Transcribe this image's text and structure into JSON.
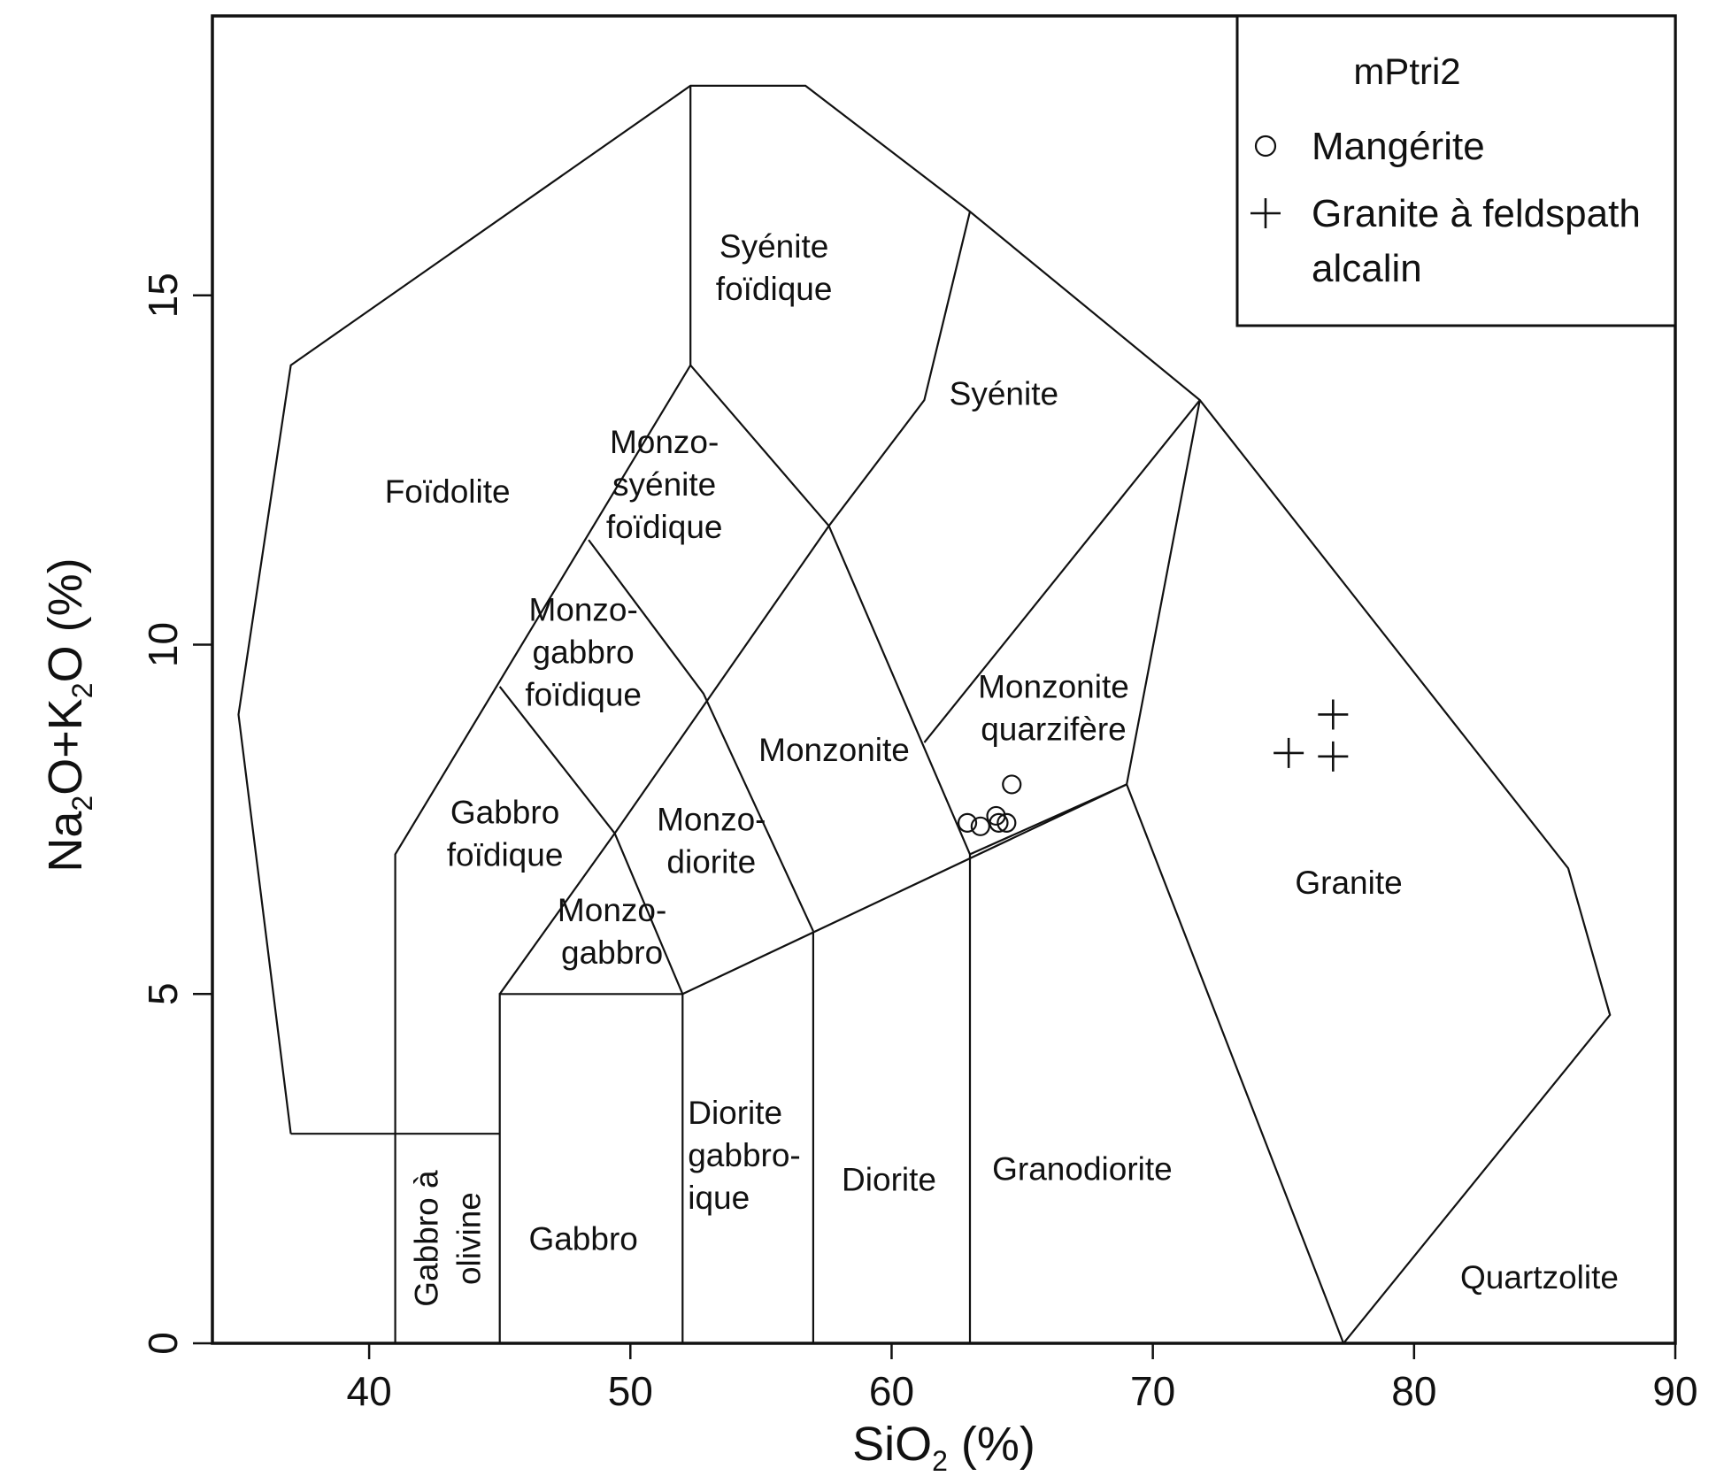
{
  "chart_data": {
    "type": "scatter",
    "xlabel": {
      "main": "SiO",
      "sub": "2",
      "tail": " (%)"
    },
    "ylabel": {
      "parts": [
        [
          "Na",
          ""
        ],
        [
          "2",
          "sub"
        ],
        [
          "O+K",
          ""
        ],
        [
          "2",
          "sub"
        ],
        [
          "O (%)",
          ""
        ]
      ]
    },
    "xlim": [
      34,
      90
    ],
    "ylim": [
      0,
      19
    ],
    "x_ticks": [
      40,
      50,
      60,
      70,
      80,
      90
    ],
    "y_ticks": [
      0,
      5,
      10,
      15
    ],
    "grid": false,
    "legend": {
      "position": "top-right",
      "title": "mPtri2",
      "entries": [
        {
          "marker": "circle",
          "label": [
            "Mangérite"
          ]
        },
        {
          "marker": "plus",
          "label": [
            "Granite à feldspath",
            "alcalin"
          ]
        }
      ]
    },
    "series": [
      {
        "name": "Mangérite",
        "marker": "circle",
        "points": [
          [
            62.9,
            7.45
          ],
          [
            63.4,
            7.4
          ],
          [
            64.0,
            7.55
          ],
          [
            64.1,
            7.45
          ],
          [
            64.4,
            7.45
          ],
          [
            64.6,
            8.0
          ]
        ]
      },
      {
        "name": "Granite à feldspath alcalin",
        "marker": "plus",
        "points": [
          [
            75.2,
            8.45
          ],
          [
            76.9,
            9.0
          ],
          [
            76.9,
            8.4
          ]
        ]
      }
    ],
    "field_boundaries": [
      [
        [
          37,
          3
        ],
        [
          35,
          9
        ],
        [
          37,
          14
        ],
        [
          52.3,
          18
        ],
        [
          56.7,
          18
        ],
        [
          63,
          16.2
        ],
        [
          71.8,
          13.5
        ],
        [
          85.9,
          6.8
        ],
        [
          87.5,
          4.7
        ],
        [
          77.3,
          0
        ]
      ],
      [
        [
          37,
          3
        ],
        [
          45,
          3
        ]
      ],
      [
        [
          41,
          0
        ],
        [
          41,
          7
        ],
        [
          52.3,
          14
        ],
        [
          57.6,
          11.7
        ],
        [
          63,
          7
        ],
        [
          69,
          8
        ],
        [
          71.8,
          13.5
        ]
      ],
      [
        [
          45,
          0
        ],
        [
          45,
          5
        ],
        [
          52,
          5
        ],
        [
          69,
          8
        ],
        [
          77.3,
          0
        ]
      ],
      [
        [
          52,
          0
        ],
        [
          52,
          5
        ]
      ],
      [
        [
          57,
          0
        ],
        [
          57,
          5.9
        ]
      ],
      [
        [
          63,
          0
        ],
        [
          63,
          7
        ]
      ],
      [
        [
          52.3,
          18
        ],
        [
          52.3,
          14
        ]
      ],
      [
        [
          63,
          16.2
        ],
        [
          61.25,
          13.5
        ],
        [
          57.6,
          11.7
        ]
      ],
      [
        [
          48.4,
          11.5
        ],
        [
          52.8,
          9.3
        ],
        [
          57,
          5.9
        ]
      ],
      [
        [
          57.6,
          11.7
        ],
        [
          49.4,
          7.3
        ],
        [
          45,
          5
        ]
      ],
      [
        [
          45,
          9.4
        ],
        [
          49.4,
          7.3
        ],
        [
          52,
          5
        ]
      ],
      [
        [
          61.25,
          8.6
        ],
        [
          71.8,
          13.5
        ]
      ]
    ],
    "field_labels": [
      {
        "lines": [
          "Foïdolite"
        ],
        "x": 43,
        "y": 12.2,
        "anchor": "middle"
      },
      {
        "lines": [
          "Syénite",
          "foïdique"
        ],
        "x": 55.5,
        "y": 15.4,
        "anchor": "middle"
      },
      {
        "lines": [
          "Syénite"
        ],
        "x": 64.3,
        "y": 13.6,
        "anchor": "middle"
      },
      {
        "lines": [
          "Monzo-",
          "syénite",
          "foïdique"
        ],
        "x": 51.3,
        "y": 12.3,
        "anchor": "middle"
      },
      {
        "lines": [
          "Monzo-",
          "gabbro",
          "foïdique"
        ],
        "x": 48.2,
        "y": 9.9,
        "anchor": "middle"
      },
      {
        "lines": [
          "Monzonite"
        ],
        "x": 57.8,
        "y": 8.5,
        "anchor": "middle"
      },
      {
        "lines": [
          "Monzonite",
          "quarzifère"
        ],
        "x": 66.2,
        "y": 9.1,
        "anchor": "middle"
      },
      {
        "lines": [
          "Gabbro",
          "foïdique"
        ],
        "x": 45.2,
        "y": 7.3,
        "anchor": "middle"
      },
      {
        "lines": [
          "Monzo-",
          "diorite"
        ],
        "x": 53.1,
        "y": 7.2,
        "anchor": "middle"
      },
      {
        "lines": [
          "Monzo-",
          "gabbro"
        ],
        "x": 49.3,
        "y": 5.9,
        "anchor": "middle"
      },
      {
        "lines": [
          "Granite"
        ],
        "x": 77.5,
        "y": 6.6,
        "anchor": "middle"
      },
      {
        "lines": [
          "Diorite",
          "gabbro-",
          "ique"
        ],
        "x": 52.2,
        "y": 2.7,
        "anchor": "start"
      },
      {
        "lines": [
          "Diorite"
        ],
        "x": 59.9,
        "y": 2.35,
        "anchor": "middle"
      },
      {
        "lines": [
          "Granodiorite"
        ],
        "x": 67.3,
        "y": 2.5,
        "anchor": "middle"
      },
      {
        "lines": [
          "Gabbro"
        ],
        "x": 48.2,
        "y": 1.5,
        "anchor": "middle"
      },
      {
        "lines": [
          "Quartzolite"
        ],
        "x": 84.8,
        "y": 0.95,
        "anchor": "middle"
      },
      {
        "lines": [
          "Gabbro à",
          "olivine"
        ],
        "x": 43,
        "y": 1.5,
        "anchor": "middle",
        "rotate": -90
      }
    ]
  }
}
